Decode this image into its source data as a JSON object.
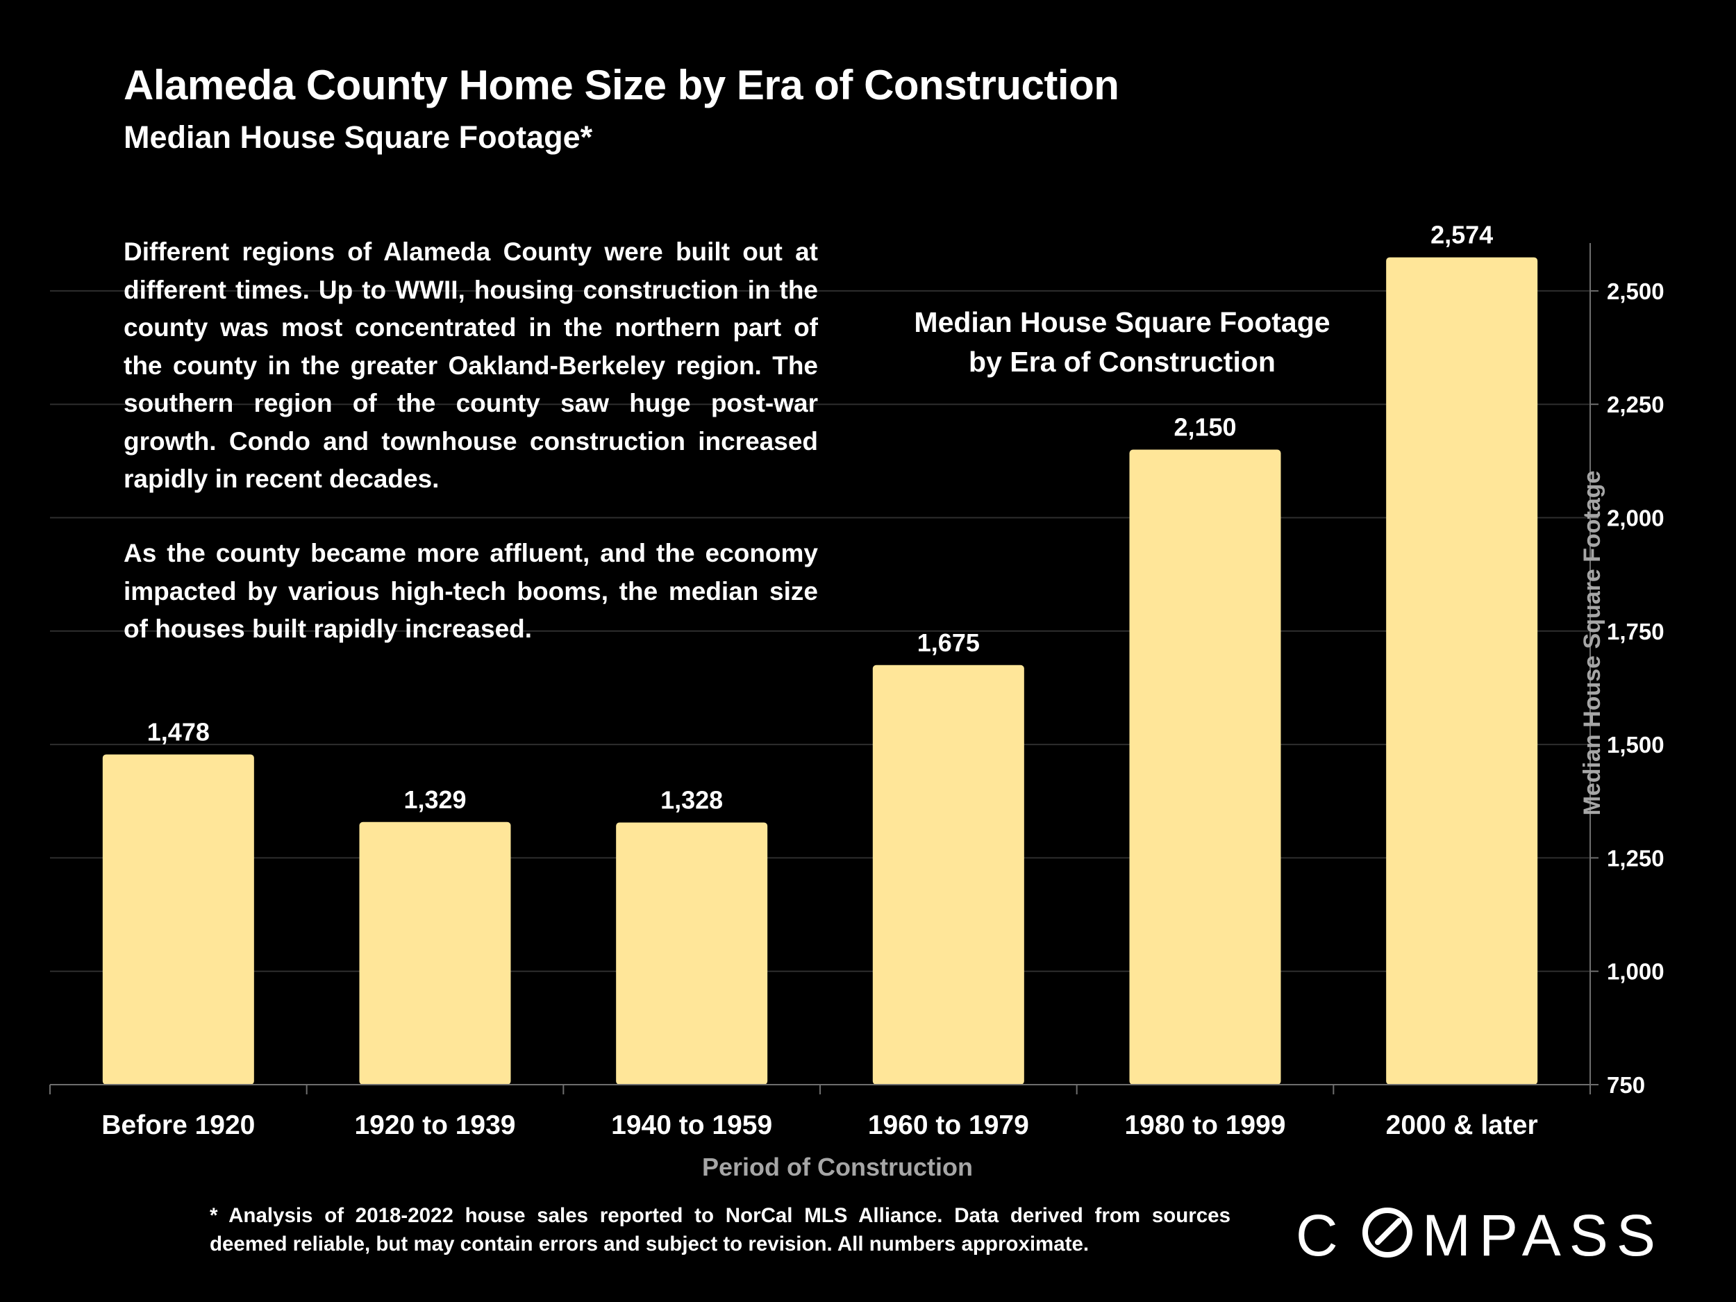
{
  "header": {
    "title": "Alameda County Home Size by Era of Construction",
    "subtitle": "Median House Square Footage*"
  },
  "commentary": {
    "paragraph1": "Different regions of Alameda County were built out at different times. Up to WWII, housing construction in the county was most concentrated in the northern part of the county in the greater Oakland-Berkeley region. The southern region of the county saw huge post-war growth. Condo and townhouse construction increased rapidly in recent decades.",
    "paragraph2": "As the county became more affluent, and the economy impacted by various high-tech booms, the median size of houses built rapidly increased."
  },
  "chart_data": {
    "type": "bar",
    "title_lines": [
      "Median House Square Footage",
      "by Era of Construction"
    ],
    "categories": [
      "Before 1920",
      "1920 to 1939",
      "1940 to 1959",
      "1960 to 1979",
      "1980 to 1999",
      "2000 & later"
    ],
    "values": [
      1478,
      1329,
      1328,
      1675,
      2150,
      2574
    ],
    "value_labels": [
      "1,478",
      "1,329",
      "1,328",
      "1,675",
      "2,150",
      "2,574"
    ],
    "xlabel": "Period of Construction",
    "ylabel": "Median House Square Footage",
    "ylim": [
      750,
      2600
    ],
    "yticks": [
      750,
      1000,
      1250,
      1500,
      1750,
      2000,
      2250,
      2500
    ],
    "ytick_labels": [
      "750",
      "1,000",
      "1,250",
      "1,500",
      "1,750",
      "2,000",
      "2,250",
      "2,500"
    ],
    "y_axis_side": "right",
    "grid": true,
    "bar_color": "#ffe699",
    "grid_color": "#2e2e2e",
    "axis_color": "#6e6e6e",
    "xlabel_color": "#a6a6a6",
    "ylabel_color": "#a6a6a6"
  },
  "footnote": "* Analysis of 2018-2022 house sales reported to NorCal MLS Alliance.  Data derived from sources deemed reliable, but may contain errors and subject to revision. All numbers approximate.",
  "brand": {
    "logo_text": "COMPASS",
    "logo_icon": "compass-o-icon"
  }
}
